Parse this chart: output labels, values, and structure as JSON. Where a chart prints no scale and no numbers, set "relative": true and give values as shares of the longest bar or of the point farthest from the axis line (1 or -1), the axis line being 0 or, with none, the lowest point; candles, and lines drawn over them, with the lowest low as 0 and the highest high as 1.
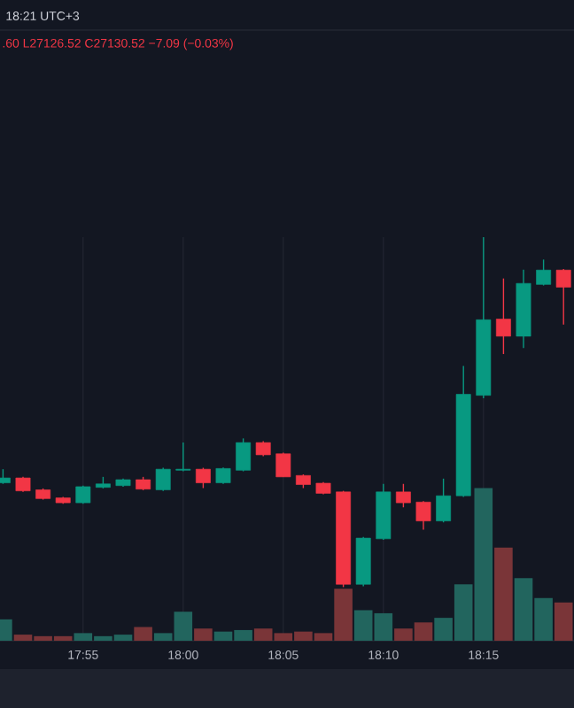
{
  "chart_data": [
    {
      "type": "candlestick",
      "relative": true,
      "grid": "x",
      "categories": [
        null,
        null,
        null,
        null,
        "17:55",
        null,
        null,
        null,
        null,
        "18:00",
        null,
        null,
        null,
        null,
        "18:05",
        null,
        null,
        null,
        null,
        "18:10",
        null,
        null,
        null,
        null,
        "18:15",
        null,
        null,
        null,
        null
      ],
      "ohlc": [
        [
          0.298,
          0.337,
          0.295,
          0.312
        ],
        [
          0.312,
          0.315,
          0.272,
          0.275
        ],
        [
          0.278,
          0.282,
          0.25,
          0.253
        ],
        [
          0.255,
          0.258,
          0.238,
          0.241
        ],
        [
          0.241,
          0.29,
          0.238,
          0.287
        ],
        [
          0.285,
          0.315,
          0.282,
          0.295
        ],
        [
          0.29,
          0.31,
          0.287,
          0.307
        ],
        [
          0.307,
          0.315,
          0.277,
          0.28
        ],
        [
          0.278,
          0.341,
          0.275,
          0.337
        ],
        [
          0.334,
          0.413,
          0.331,
          0.337
        ],
        [
          0.337,
          0.341,
          0.283,
          0.298
        ],
        [
          0.298,
          0.342,
          0.295,
          0.339
        ],
        [
          0.334,
          0.425,
          0.331,
          0.413
        ],
        [
          0.413,
          0.417,
          0.374,
          0.378
        ],
        [
          0.381,
          0.384,
          0.315,
          0.315
        ],
        [
          0.319,
          0.322,
          0.283,
          0.293
        ],
        [
          0.297,
          0.3,
          0.265,
          0.268
        ],
        [
          0.272,
          0.275,
          0.0,
          0.008
        ],
        [
          0.008,
          0.143,
          0.002,
          0.14
        ],
        [
          0.138,
          0.295,
          0.135,
          0.272
        ],
        [
          0.272,
          0.295,
          0.228,
          0.241
        ],
        [
          0.243,
          0.246,
          0.164,
          0.189
        ],
        [
          0.189,
          0.31,
          0.185,
          0.261
        ],
        [
          0.261,
          0.632,
          0.258,
          0.551
        ],
        [
          0.548,
          1.0,
          0.54,
          0.764
        ],
        [
          0.766,
          0.882,
          0.666,
          0.717
        ],
        [
          0.717,
          0.907,
          0.683,
          0.868
        ],
        [
          0.865,
          0.936,
          0.862,
          0.906
        ],
        [
          0.906,
          0.909,
          0.75,
          0.857
        ]
      ],
      "colors": [
        "#089981",
        "#f23645",
        "#f23645",
        "#f23645",
        "#089981",
        "#089981",
        "#089981",
        "#f23645",
        "#089981",
        "#089981",
        "#f23645",
        "#089981",
        "#089981",
        "#f23645",
        "#f23645",
        "#f23645",
        "#f23645",
        "#f23645",
        "#089981",
        "#089981",
        "#f23645",
        "#f23645",
        "#089981",
        "#089981",
        "#089981",
        "#f23645",
        "#089981",
        "#089981",
        "#f23645"
      ],
      "annotations": [
        "18:21 UTC+3",
        ".60 L27126.52 C27130.52 −7.09 (−0.03%)"
      ]
    },
    {
      "type": "bar",
      "relative": true,
      "categories": [
        null,
        null,
        null,
        null,
        null,
        null,
        null,
        null,
        null,
        null,
        null,
        null,
        null,
        null,
        null,
        null,
        null,
        null,
        null,
        null,
        null,
        null,
        null,
        null,
        null,
        null,
        null,
        null,
        null
      ],
      "values": [
        0.14,
        0.04,
        0.03,
        0.03,
        0.05,
        0.03,
        0.04,
        0.09,
        0.05,
        0.19,
        0.08,
        0.06,
        0.07,
        0.08,
        0.05,
        0.06,
        0.05,
        0.34,
        0.2,
        0.18,
        0.08,
        0.12,
        0.15,
        0.37,
        1,
        0.61,
        0.41,
        0.28,
        0.25
      ],
      "colors": [
        "#22655e",
        "#7a3538",
        "#7a3538",
        "#7a3538",
        "#22655e",
        "#22655e",
        "#22655e",
        "#7a3538",
        "#22655e",
        "#22655e",
        "#7a3538",
        "#22655e",
        "#22655e",
        "#7a3538",
        "#7a3538",
        "#7a3538",
        "#7a3538",
        "#7a3538",
        "#22655e",
        "#22655e",
        "#7a3538",
        "#7a3538",
        "#22655e",
        "#22655e",
        "#22655e",
        "#7a3538",
        "#22655e",
        "#22655e",
        "#7a3538"
      ]
    }
  ]
}
